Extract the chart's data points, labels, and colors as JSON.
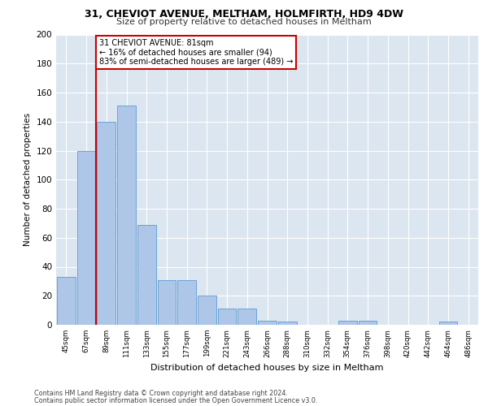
{
  "title1": "31, CHEVIOT AVENUE, MELTHAM, HOLMFIRTH, HD9 4DW",
  "title2": "Size of property relative to detached houses in Meltham",
  "xlabel": "Distribution of detached houses by size in Meltham",
  "ylabel": "Number of detached properties",
  "categories": [
    "45sqm",
    "67sqm",
    "89sqm",
    "111sqm",
    "133sqm",
    "155sqm",
    "177sqm",
    "199sqm",
    "221sqm",
    "243sqm",
    "266sqm",
    "288sqm",
    "310sqm",
    "332sqm",
    "354sqm",
    "376sqm",
    "398sqm",
    "420sqm",
    "442sqm",
    "464sqm",
    "486sqm"
  ],
  "values": [
    33,
    120,
    140,
    151,
    69,
    31,
    31,
    20,
    11,
    11,
    3,
    2,
    0,
    0,
    3,
    3,
    0,
    0,
    0,
    2,
    0
  ],
  "bar_color": "#aec6e8",
  "bar_edge_color": "#5b9bd5",
  "marker_color": "#cc0000",
  "annotation_text": "31 CHEVIOT AVENUE: 81sqm\n← 16% of detached houses are smaller (94)\n83% of semi-detached houses are larger (489) →",
  "annotation_box_color": "#cc0000",
  "background_color": "#dce6f0",
  "ylim": [
    0,
    200
  ],
  "yticks": [
    0,
    20,
    40,
    60,
    80,
    100,
    120,
    140,
    160,
    180,
    200
  ],
  "footer1": "Contains HM Land Registry data © Crown copyright and database right 2024.",
  "footer2": "Contains public sector information licensed under the Open Government Licence v3.0."
}
